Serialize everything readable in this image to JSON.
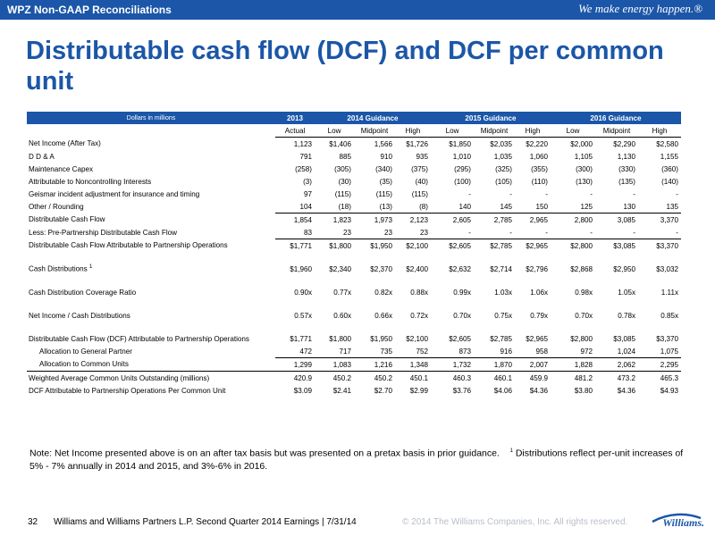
{
  "header": {
    "section": "WPZ Non-GAAP Reconciliations",
    "tagline": "We make energy happen.®"
  },
  "title": "Distributable cash flow (DCF) and DCF per common unit",
  "table": {
    "unit_label": "Dollars in millions",
    "groups": [
      "2013",
      "2014 Guidance",
      "2015 Guidance",
      "2016 Guidance"
    ],
    "subheaders": [
      "Actual",
      "Low",
      "Midpoint",
      "High",
      "Low",
      "Midpoint",
      "High",
      "Low",
      "Midpoint",
      "High"
    ],
    "rows": [
      {
        "label": "Net Income (After Tax)",
        "values": [
          "1,123",
          "$1,406",
          "1,566",
          "$1,726",
          "$1,850",
          "$2,035",
          "$2,220",
          "$2,000",
          "$2,290",
          "$2,580"
        ]
      },
      {
        "label": "D D & A",
        "values": [
          "791",
          "885",
          "910",
          "935",
          "1,010",
          "1,035",
          "1,060",
          "1,105",
          "1,130",
          "1,155"
        ]
      },
      {
        "label": "Maintenance Capex",
        "values": [
          "(258)",
          "(305)",
          "(340)",
          "(375)",
          "(295)",
          "(325)",
          "(355)",
          "(300)",
          "(330)",
          "(360)"
        ]
      },
      {
        "label": "Attributable to Noncontrolling Interests",
        "values": [
          "(3)",
          "(30)",
          "(35)",
          "(40)",
          "(100)",
          "(105)",
          "(110)",
          "(130)",
          "(135)",
          "(140)"
        ]
      },
      {
        "label": "Geismar incident adjustment for insurance and timing",
        "values": [
          "97",
          "(115)",
          "(115)",
          "(115)",
          "-",
          "-",
          "-",
          "-",
          "-",
          "-"
        ]
      },
      {
        "label": "Other / Rounding",
        "values": [
          "104",
          "(18)",
          "(13)",
          "(8)",
          "140",
          "145",
          "150",
          "125",
          "130",
          "135"
        ]
      },
      {
        "label": "Distributable Cash Flow",
        "values": [
          "1,854",
          "1,823",
          "1,973",
          "2,123",
          "2,605",
          "2,785",
          "2,965",
          "2,800",
          "3,085",
          "3,370"
        ]
      },
      {
        "label": "Less: Pre-Partnership Distributable Cash Flow",
        "values": [
          "83",
          "23",
          "23",
          "23",
          "-",
          "-",
          "-",
          "-",
          "-",
          "-"
        ]
      },
      {
        "label": "Distributable Cash Flow Attributable to Partnership Operations",
        "values": [
          "$1,771",
          "$1,800",
          "$1,950",
          "$2,100",
          "$2,605",
          "$2,785",
          "$2,965",
          "$2,800",
          "$3,085",
          "$3,370"
        ]
      },
      {
        "label": "Cash Distributions",
        "sup": "1",
        "values": [
          "$1,960",
          "$2,340",
          "$2,370",
          "$2,400",
          "$2,632",
          "$2,714",
          "$2,796",
          "$2,868",
          "$2,950",
          "$3,032"
        ]
      },
      {
        "label": "Cash Distribution Coverage Ratio",
        "values": [
          "0.90x",
          "0.77x",
          "0.82x",
          "0.88x",
          "0.99x",
          "1.03x",
          "1.06x",
          "0.98x",
          "1.05x",
          "1.11x"
        ]
      },
      {
        "label": "Net Income / Cash Distributions",
        "values": [
          "0.57x",
          "0.60x",
          "0.66x",
          "0.72x",
          "0.70x",
          "0.75x",
          "0.79x",
          "0.70x",
          "0.78x",
          "0.85x"
        ]
      },
      {
        "label": "Distributable Cash Flow (DCF) Attributable to Partnership Operations",
        "values": [
          "$1,771",
          "$1,800",
          "$1,950",
          "$2,100",
          "$2,605",
          "$2,785",
          "$2,965",
          "$2,800",
          "$3,085",
          "$3,370"
        ]
      },
      {
        "label": "Allocation to General Partner",
        "values": [
          "472",
          "717",
          "735",
          "752",
          "873",
          "916",
          "958",
          "972",
          "1,024",
          "1,075"
        ]
      },
      {
        "label": "Allocation to Common Units",
        "values": [
          "1,299",
          "1,083",
          "1,216",
          "1,348",
          "1,732",
          "1,870",
          "2,007",
          "1,828",
          "2,062",
          "2,295"
        ]
      },
      {
        "label": "Weighted Average Common Units Outstanding (millions)",
        "values": [
          "420.9",
          "450.2",
          "450.2",
          "450.1",
          "460.3",
          "460.1",
          "459.9",
          "481.2",
          "473.2",
          "465.3"
        ]
      },
      {
        "label": "DCF Attributable to Partnership Operations Per Common Unit",
        "values": [
          "$3.09",
          "$2.41",
          "$2.70",
          "$2.99",
          "$3.76",
          "$4.06",
          "$4.36",
          "$3.80",
          "$4.36",
          "$4.93"
        ]
      }
    ]
  },
  "note": {
    "text": "Note:  Net Income presented above is on an after tax basis but was presented on a pretax basis in prior guidance.",
    "footnote_marker": "1",
    "footnote_text": "Distributions reflect per-unit increases of 5% - 7% annually in 2014 and 2015, and 3%-6% in 2016."
  },
  "footer": {
    "page": "32",
    "text": "Williams and Williams Partners L.P. Second Quarter 2014 Earnings  |  7/31/14",
    "copyright": "© 2014 The Williams Companies, Inc. All rights reserved.",
    "logo_text": "Williams."
  },
  "colors": {
    "brand_blue": "#1b56a8",
    "copyright_gray": "#b8bec8"
  }
}
